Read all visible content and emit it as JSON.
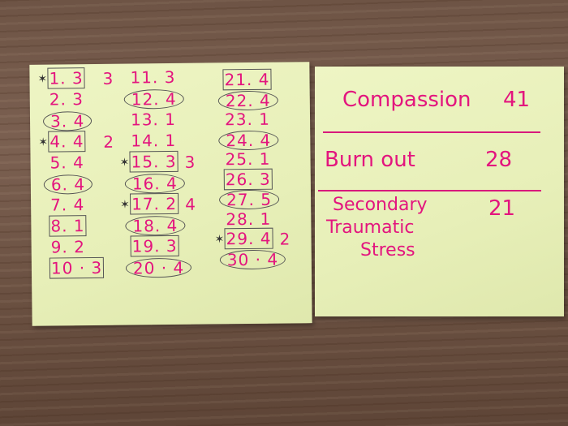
{
  "left_note": {
    "items": [
      {
        "text": "1. 3",
        "mark": "box",
        "star": true,
        "side": "3"
      },
      {
        "text": "2. 3",
        "mark": "none"
      },
      {
        "text": "3. 4",
        "mark": "oval"
      },
      {
        "text": "4. 4",
        "mark": "box",
        "star": true,
        "side": "2"
      },
      {
        "text": "5. 4",
        "mark": "none"
      },
      {
        "text": "6. 4",
        "mark": "oval"
      },
      {
        "text": "7. 4",
        "mark": "none"
      },
      {
        "text": "8. 1",
        "mark": "box"
      },
      {
        "text": "9. 2",
        "mark": "none"
      },
      {
        "text": "10 · 3",
        "mark": "box"
      },
      {
        "text": "11. 3",
        "mark": "none"
      },
      {
        "text": "12. 4",
        "mark": "oval"
      },
      {
        "text": "13. 1",
        "mark": "none"
      },
      {
        "text": "14. 1",
        "mark": "none"
      },
      {
        "text": "15. 3",
        "mark": "box",
        "star": true,
        "side": "3"
      },
      {
        "text": "16. 4",
        "mark": "oval"
      },
      {
        "text": "17. 2",
        "mark": "box",
        "star": true,
        "side": "4"
      },
      {
        "text": "18. 4",
        "mark": "oval"
      },
      {
        "text": "19. 3",
        "mark": "box"
      },
      {
        "text": "20 · 4",
        "mark": "oval"
      },
      {
        "text": "21. 4",
        "mark": "box"
      },
      {
        "text": "22. 4",
        "mark": "oval"
      },
      {
        "text": "23. 1",
        "mark": "none"
      },
      {
        "text": "24. 4",
        "mark": "oval"
      },
      {
        "text": "25. 1",
        "mark": "none"
      },
      {
        "text": "26. 3",
        "mark": "box"
      },
      {
        "text": "27. 5",
        "mark": "oval"
      },
      {
        "text": "28. 1",
        "mark": "none"
      },
      {
        "text": "29. 4",
        "mark": "box",
        "star": true,
        "side": "2"
      },
      {
        "text": "30 · 4",
        "mark": "oval"
      }
    ]
  },
  "right_note": {
    "compassion": {
      "label": "Compassion",
      "score": "41"
    },
    "burnout": {
      "label": "Burn out",
      "score": "28"
    },
    "secondary": {
      "label_lines": [
        "Secondary",
        "Traumatic",
        "Stress"
      ],
      "score": "21"
    }
  },
  "colors": {
    "ink": "#e3157e",
    "note": "#e9f0bb",
    "wood": "#6e5445",
    "pencil": "#555555"
  }
}
